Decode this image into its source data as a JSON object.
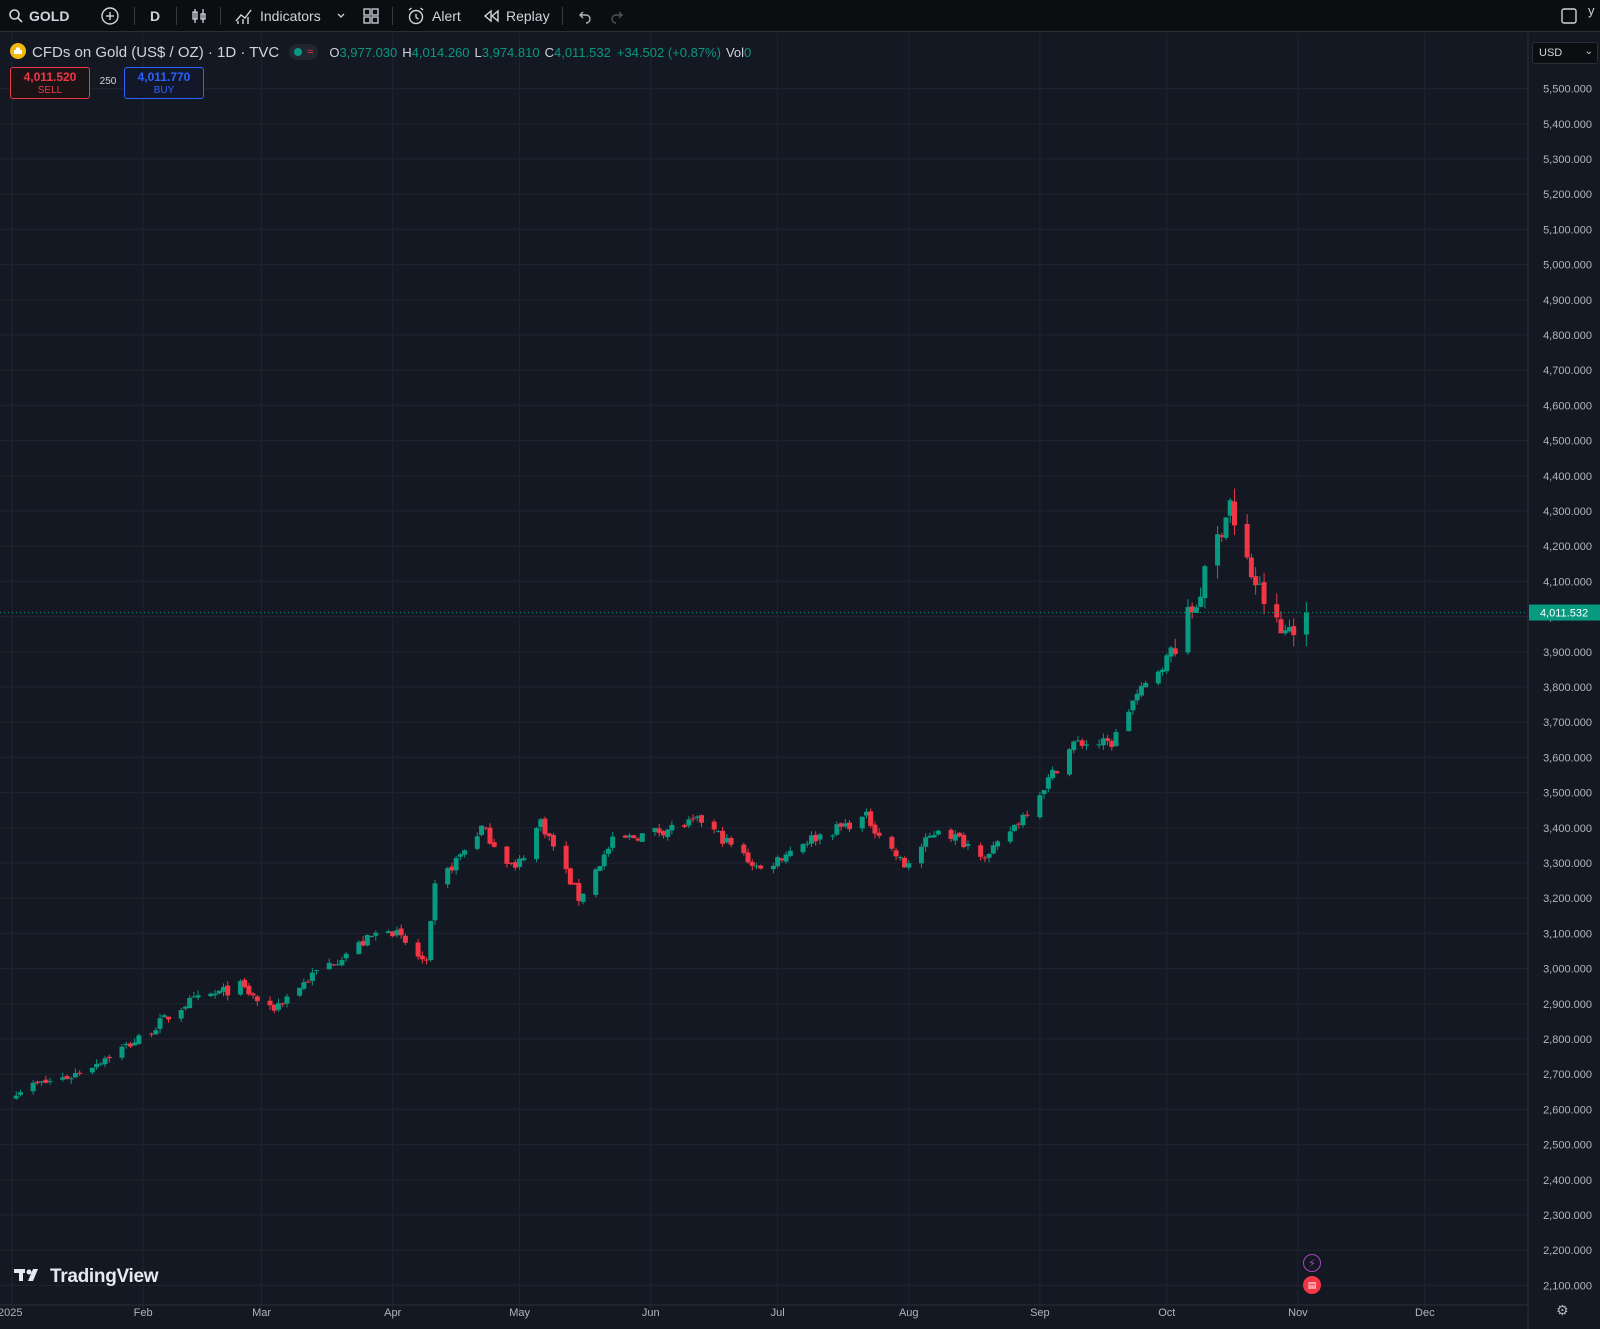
{
  "toolbar": {
    "symbol": "GOLD",
    "interval": "D",
    "indicators_label": "Indicators",
    "alert_label": "Alert",
    "replay_label": "Replay",
    "cut_text": "y"
  },
  "legend": {
    "title": "CFDs on Gold (US$ / OZ) · 1D · TVC",
    "o_key": "O",
    "o_val": "3,977.030",
    "h_key": "H",
    "h_val": "4,014.260",
    "l_key": "L",
    "l_val": "3,974.810",
    "c_key": "C",
    "c_val": "4,011.532",
    "change": "+34.502 (+0.87%)",
    "vol_key": "Vol",
    "vol_val": "0"
  },
  "trade": {
    "sell_price": "4,011.520",
    "sell_label": "SELL",
    "spread": "250",
    "buy_price": "4,011.770",
    "buy_label": "BUY"
  },
  "currency": "USD",
  "logo_text": "TradingView",
  "colors": {
    "up": "#089981",
    "down": "#f23645",
    "background": "#141823",
    "grid": "#1f2430",
    "text": "#b2b5be"
  },
  "chart_data": {
    "type": "candlestick",
    "y_axis_ticks": [
      "5,500.000",
      "5,400.000",
      "5,300.000",
      "5,200.000",
      "5,100.000",
      "5,000.000",
      "4,900.000",
      "4,800.000",
      "4,700.000",
      "4,600.000",
      "4,500.000",
      "4,400.000",
      "4,300.000",
      "4,200.000",
      "4,100.000",
      "4,000.000",
      "3,900.000",
      "3,800.000",
      "3,700.000",
      "3,600.000",
      "3,500.000",
      "3,400.000",
      "3,300.000",
      "3,200.000",
      "3,100.000",
      "3,000.000",
      "2,900.000",
      "2,800.000",
      "2,700.000",
      "2,600.000",
      "2,500.000",
      "2,400.000",
      "2,300.000",
      "2,200.000",
      "2,100.000"
    ],
    "x_axis_ticks": [
      "2025",
      "Feb",
      "Mar",
      "Apr",
      "May",
      "Jun",
      "Jul",
      "Aug",
      "Sep",
      "Oct",
      "Nov",
      "Dec"
    ],
    "ylim": [
      2050,
      5550
    ],
    "last_price": 4011.532,
    "last_price_label": "4,011.532",
    "close_path": [
      [
        "2025-01-02",
        2655
      ],
      [
        "2025-01-15",
        2695
      ],
      [
        "2025-01-31",
        2800
      ],
      [
        "2025-02-11",
        2900
      ],
      [
        "2025-02-24",
        2950
      ],
      [
        "2025-03-03",
        2880
      ],
      [
        "2025-03-14",
        2990
      ],
      [
        "2025-03-31",
        3120
      ],
      [
        "2025-04-09",
        3010
      ],
      [
        "2025-04-11",
        3230
      ],
      [
        "2025-04-22",
        3400
      ],
      [
        "2025-04-30",
        3280
      ],
      [
        "2025-05-06",
        3420
      ],
      [
        "2025-05-15",
        3200
      ],
      [
        "2025-05-23",
        3360
      ],
      [
        "2025-06-13",
        3420
      ],
      [
        "2025-06-27",
        3280
      ],
      [
        "2025-07-07",
        3360
      ],
      [
        "2025-07-22",
        3430
      ],
      [
        "2025-07-31",
        3290
      ],
      [
        "2025-08-08",
        3400
      ],
      [
        "2025-08-20",
        3320
      ],
      [
        "2025-08-29",
        3450
      ],
      [
        "2025-09-09",
        3640
      ],
      [
        "2025-09-18",
        3640
      ],
      [
        "2025-09-23",
        3760
      ],
      [
        "2025-10-01",
        3880
      ],
      [
        "2025-10-08",
        4040
      ],
      [
        "2025-10-16",
        4330
      ],
      [
        "2025-10-17",
        4250
      ],
      [
        "2025-10-21",
        4120
      ],
      [
        "2025-10-28",
        3950
      ],
      [
        "2025-11-03",
        4011.532
      ]
    ]
  }
}
